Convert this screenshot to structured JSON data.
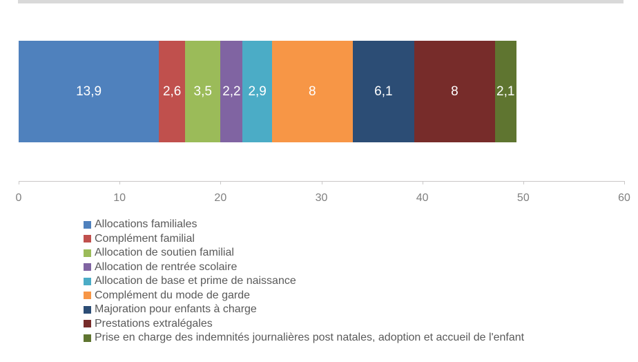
{
  "top_strip_color": "#d9d9d9",
  "chart_data": {
    "type": "bar",
    "orientation": "horizontal-stacked",
    "title": "",
    "xlabel": "",
    "ylabel": "",
    "xlim": [
      0,
      60
    ],
    "x_ticks": [
      "0",
      "10",
      "20",
      "30",
      "40",
      "50",
      "60"
    ],
    "grid": false,
    "legend_position": "bottom-left",
    "decimal_separator": ",",
    "series": [
      {
        "name": "Allocations familiales",
        "value": 13.9,
        "label": "13,9",
        "color": "#4f81bd"
      },
      {
        "name": "Complément familial",
        "value": 2.6,
        "label": "2,6",
        "color": "#c0504d"
      },
      {
        "name": "Allocation de soutien familial",
        "value": 3.5,
        "label": "3,5",
        "color": "#9bbb59"
      },
      {
        "name": "Allocation de rentrée scolaire",
        "value": 2.2,
        "label": "2,2",
        "color": "#8064a2"
      },
      {
        "name": "Allocation de base et prime de naissance",
        "value": 2.9,
        "label": "2,9",
        "color": "#4bacc6"
      },
      {
        "name": "Complément du mode de garde",
        "value": 8,
        "label": "8",
        "color": "#f79646"
      },
      {
        "name": "Majoration pour enfants à charge",
        "value": 6.1,
        "label": "6,1",
        "color": "#2c4d75"
      },
      {
        "name": "Prestations extralégales",
        "value": 8,
        "label": "8",
        "color": "#772c2a"
      },
      {
        "name": "Prise en charge des indemnités journalières post natales, adoption et accueil de l'enfant",
        "value": 2.1,
        "label": "2,1",
        "color": "#5f7530"
      }
    ],
    "colors": {
      "value_label": "#ffffff",
      "axis_line": "#c9c7c7",
      "tick_label": "#7f7f7f",
      "legend_text": "#595959"
    }
  }
}
